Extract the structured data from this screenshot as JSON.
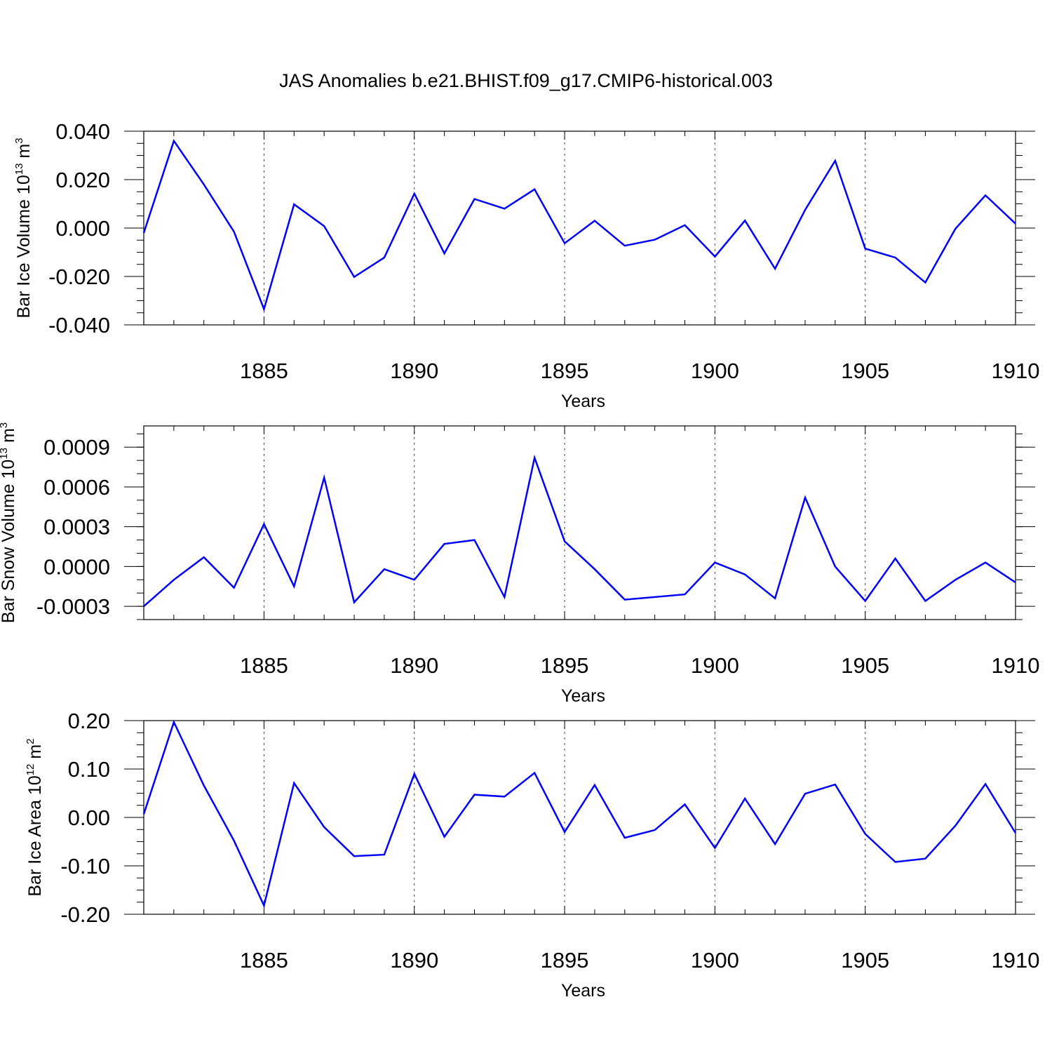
{
  "title": "JAS Anomalies b.e21.BHIST.f09_g17.CMIP6-historical.003",
  "colors": {
    "line": "#0000ff",
    "axis": "#000000",
    "grid": "#000000"
  },
  "chart_data": [
    {
      "type": "line",
      "name": "ice-volume",
      "ylabel_text": "Bar Ice Volume 10",
      "ylabel_sup": "13",
      "ylabel_unit": " m",
      "ylabel_unit_sup": "3",
      "xlabel": "Years",
      "xlim": [
        1881,
        1910
      ],
      "ylim": [
        -0.04,
        0.04
      ],
      "yticks": [
        -0.04,
        -0.02,
        0.0,
        0.02,
        0.04
      ],
      "ytick_labels": [
        "-0.040",
        "-0.020",
        "0.000",
        "0.020",
        "0.040"
      ],
      "ytick_minor": 0.005,
      "xticks": [
        1885,
        1890,
        1895,
        1900,
        1905,
        1910
      ],
      "xtick_labels": [
        "1885",
        "1890",
        "1895",
        "1900",
        "1905",
        "1910"
      ],
      "x": [
        1881,
        1882,
        1883,
        1884,
        1885,
        1886,
        1887,
        1888,
        1889,
        1890,
        1891,
        1892,
        1893,
        1894,
        1895,
        1896,
        1897,
        1898,
        1899,
        1900,
        1901,
        1902,
        1903,
        1904,
        1905,
        1906,
        1907,
        1908,
        1909,
        1910
      ],
      "values": [
        -0.002,
        0.036,
        0.018,
        -0.0015,
        -0.0335,
        0.0098,
        0.0008,
        -0.0202,
        -0.0122,
        0.0142,
        -0.0105,
        0.012,
        0.008,
        0.016,
        -0.0063,
        0.003,
        -0.0073,
        -0.0048,
        0.0012,
        -0.0118,
        0.0031,
        -0.0168,
        0.0075,
        0.0278,
        -0.0085,
        -0.0122,
        -0.0225,
        -0.0003,
        0.0135,
        0.0018
      ]
    },
    {
      "type": "line",
      "name": "snow-volume",
      "ylabel_text": "Bar Snow Volume 10",
      "ylabel_sup": "13",
      "ylabel_unit": " m",
      "ylabel_unit_sup": "3",
      "xlabel": "Years",
      "xlim": [
        1881,
        1910
      ],
      "ylim": [
        -0.0004,
        0.00106
      ],
      "yticks": [
        -0.0003,
        0.0,
        0.0003,
        0.0006,
        0.0009
      ],
      "ytick_labels": [
        "-0.0003",
        "0.0000",
        "0.0003",
        "0.0006",
        "0.0009"
      ],
      "ytick_minor": 0.0001,
      "xticks": [
        1885,
        1890,
        1895,
        1900,
        1905,
        1910
      ],
      "xtick_labels": [
        "1885",
        "1890",
        "1895",
        "1900",
        "1905",
        "1910"
      ],
      "x": [
        1881,
        1882,
        1883,
        1884,
        1885,
        1886,
        1887,
        1888,
        1889,
        1890,
        1891,
        1892,
        1893,
        1894,
        1895,
        1896,
        1897,
        1898,
        1899,
        1900,
        1901,
        1902,
        1903,
        1904,
        1905,
        1906,
        1907,
        1908,
        1909,
        1910
      ],
      "values": [
        -0.0003,
        -0.0001,
        7e-05,
        -0.00016,
        0.00032,
        -0.00015,
        0.00067,
        -0.00027,
        -2e-05,
        -0.0001,
        0.00017,
        0.0002,
        -0.00023,
        0.00082,
        0.00019,
        -2e-05,
        -0.00025,
        -0.00023,
        -0.00021,
        3e-05,
        -6e-05,
        -0.00024,
        0.00052,
        0.0,
        -0.00026,
        6e-05,
        -0.00026,
        -0.0001,
        3e-05,
        -0.00012
      ]
    },
    {
      "type": "line",
      "name": "ice-area",
      "ylabel_text": "Bar Ice Area 10",
      "ylabel_sup": "12",
      "ylabel_unit": " m",
      "ylabel_unit_sup": "2",
      "xlabel": "Years",
      "xlim": [
        1881,
        1910
      ],
      "ylim": [
        -0.2,
        0.2
      ],
      "yticks": [
        -0.2,
        -0.1,
        0.0,
        0.1,
        0.2
      ],
      "ytick_labels": [
        "-0.20",
        "-0.10",
        "0.00",
        "0.10",
        "0.20"
      ],
      "ytick_minor": 0.025,
      "xticks": [
        1885,
        1890,
        1895,
        1900,
        1905,
        1910
      ],
      "xtick_labels": [
        "1885",
        "1890",
        "1895",
        "1900",
        "1905",
        "1910"
      ],
      "x": [
        1881,
        1882,
        1883,
        1884,
        1885,
        1886,
        1887,
        1888,
        1889,
        1890,
        1891,
        1892,
        1893,
        1894,
        1895,
        1896,
        1897,
        1898,
        1899,
        1900,
        1901,
        1902,
        1903,
        1904,
        1905,
        1906,
        1907,
        1908,
        1909,
        1910
      ],
      "values": [
        0.007,
        0.197,
        0.066,
        -0.048,
        -0.182,
        0.071,
        -0.02,
        -0.08,
        -0.077,
        0.09,
        -0.04,
        0.047,
        0.043,
        0.092,
        -0.03,
        0.067,
        -0.042,
        -0.026,
        0.027,
        -0.063,
        0.039,
        -0.055,
        0.049,
        0.068,
        -0.034,
        -0.092,
        -0.085,
        -0.017,
        0.069,
        -0.032
      ]
    }
  ]
}
